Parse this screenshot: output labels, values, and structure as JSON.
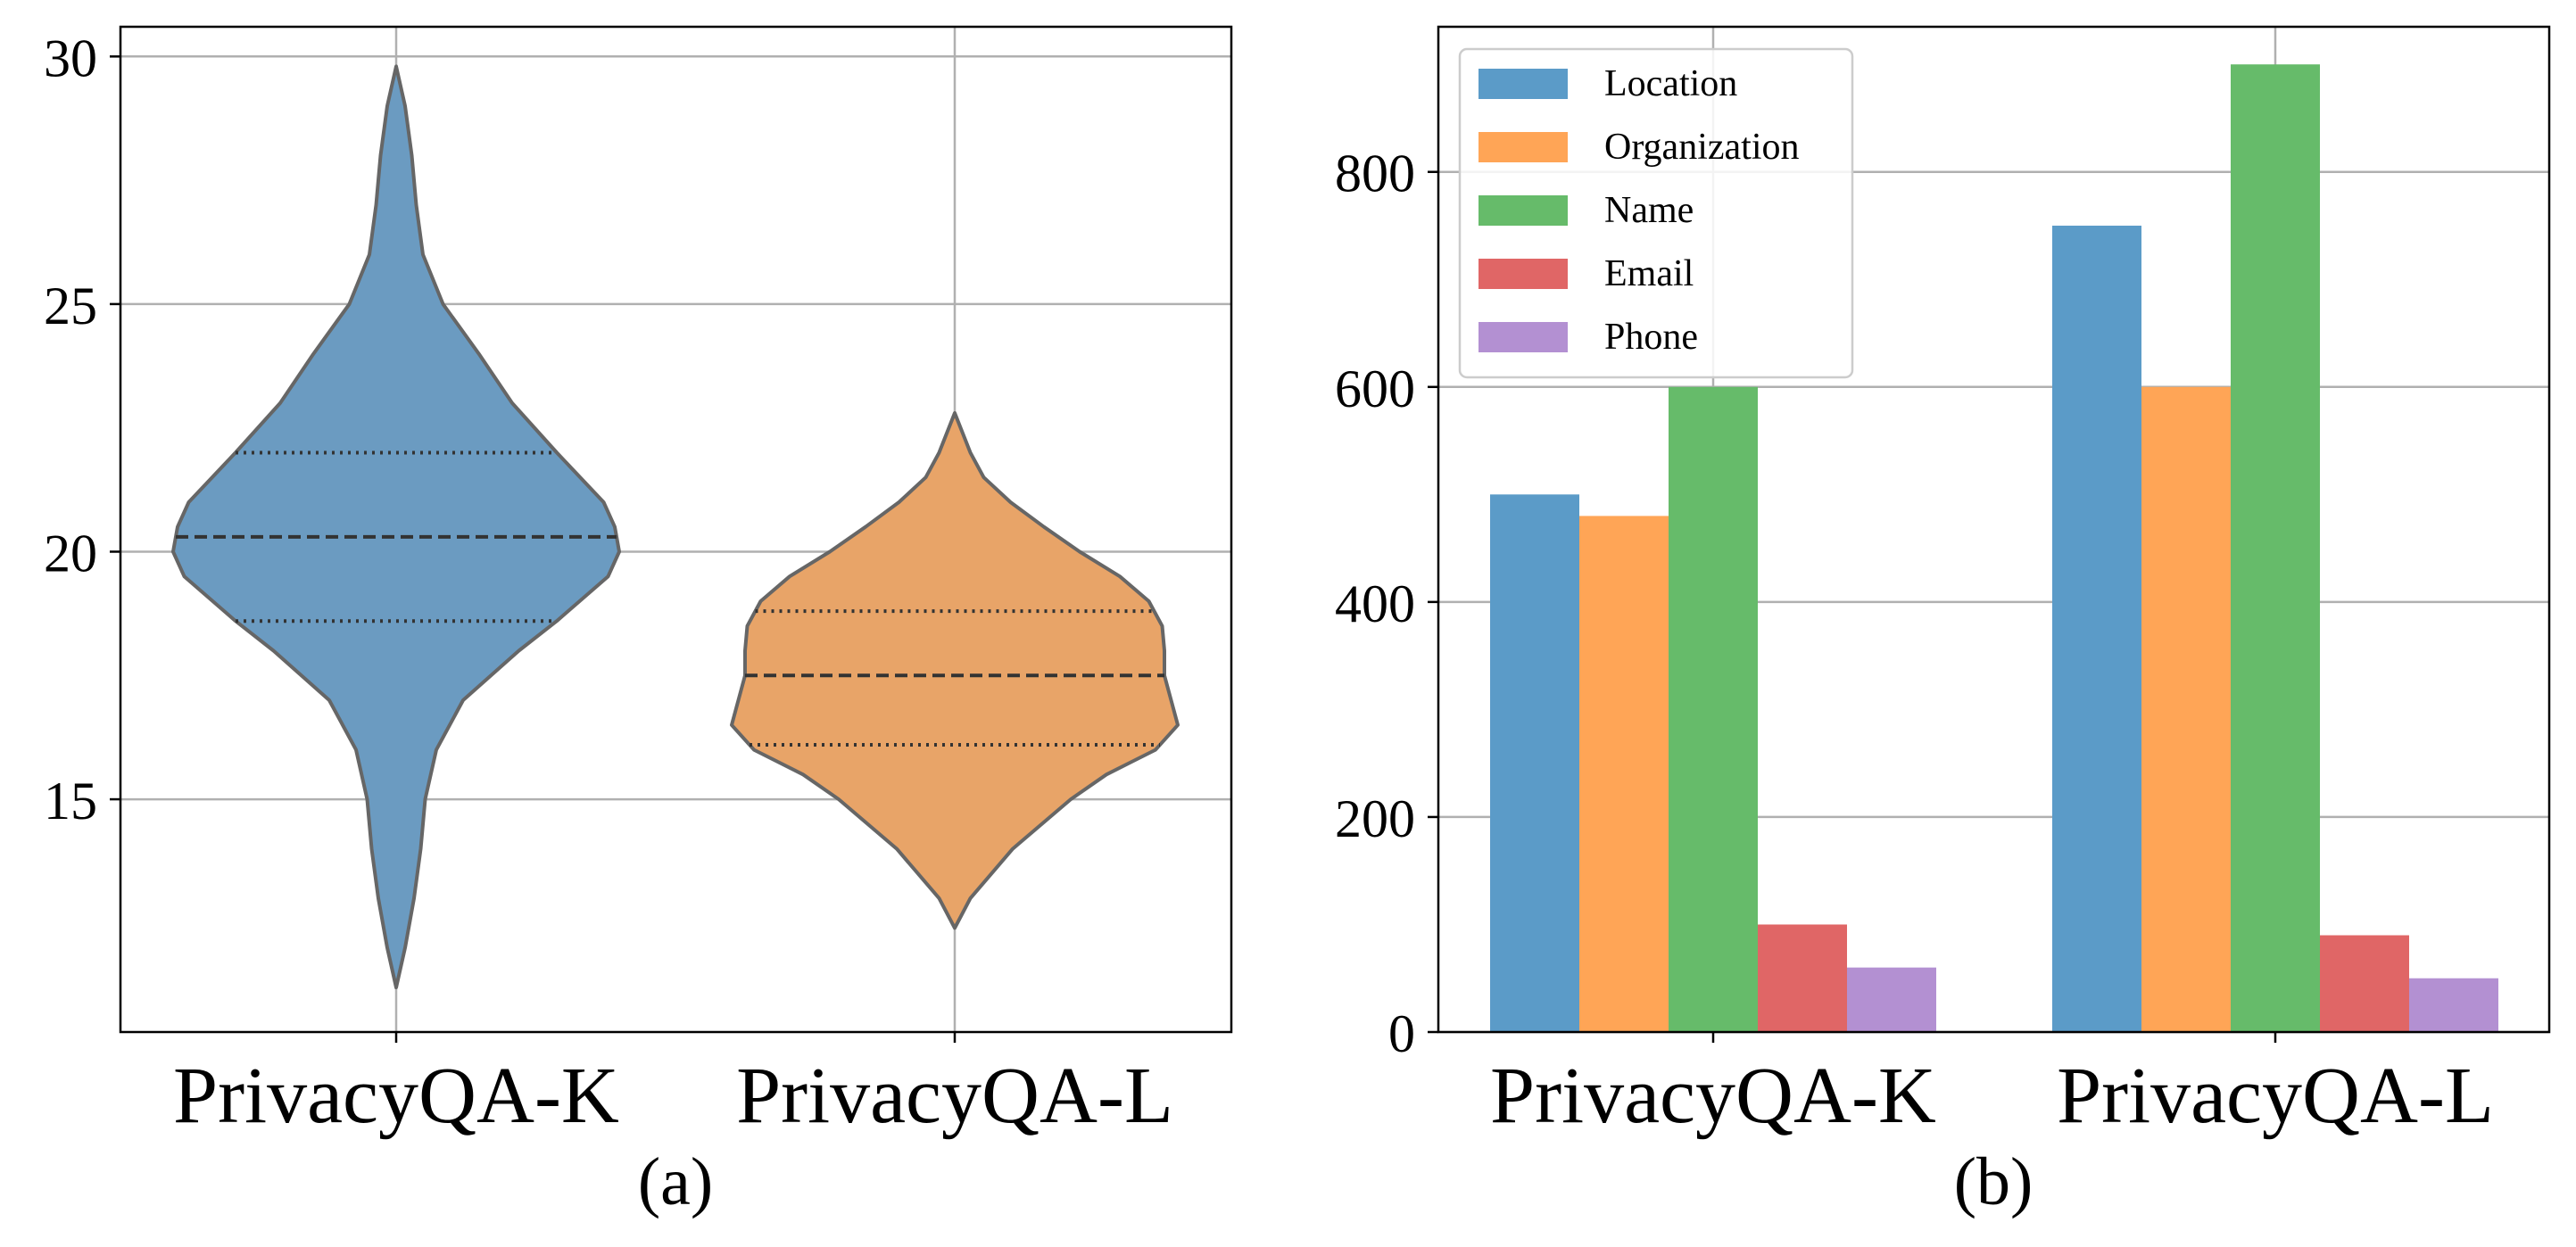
{
  "chart_data": [
    {
      "type": "violin",
      "caption": "(a)",
      "categories": [
        "PrivacyQA-K",
        "PrivacyQA-L"
      ],
      "ylim": [
        10.3,
        30.6
      ],
      "yticks": [
        15,
        20,
        25,
        30
      ],
      "grid": true,
      "colors": [
        "#6b9bc1",
        "#e8a468"
      ],
      "violins": [
        {
          "category": "PrivacyQA-K",
          "min": 11.2,
          "max": 29.8,
          "q1": 18.6,
          "median": 20.3,
          "q3": 22.0,
          "profile": [
            [
              11.2,
              0
            ],
            [
              12.0,
              0.04
            ],
            [
              13.0,
              0.08
            ],
            [
              14.0,
              0.11
            ],
            [
              15.0,
              0.13
            ],
            [
              16.0,
              0.18
            ],
            [
              17.0,
              0.3
            ],
            [
              18.0,
              0.55
            ],
            [
              18.6,
              0.72
            ],
            [
              19.5,
              0.95
            ],
            [
              20.0,
              1.0
            ],
            [
              20.5,
              0.98
            ],
            [
              21.0,
              0.93
            ],
            [
              22.0,
              0.72
            ],
            [
              23.0,
              0.52
            ],
            [
              24.0,
              0.37
            ],
            [
              25.0,
              0.21
            ],
            [
              26.0,
              0.12
            ],
            [
              27.0,
              0.09
            ],
            [
              28.0,
              0.07
            ],
            [
              29.0,
              0.04
            ],
            [
              29.8,
              0
            ]
          ]
        },
        {
          "category": "PrivacyQA-L",
          "min": 12.4,
          "max": 22.8,
          "q1": 16.1,
          "median": 17.5,
          "q3": 18.8,
          "profile": [
            [
              12.4,
              0
            ],
            [
              13.0,
              0.07
            ],
            [
              14.0,
              0.26
            ],
            [
              15.0,
              0.52
            ],
            [
              15.5,
              0.68
            ],
            [
              16.0,
              0.9
            ],
            [
              16.5,
              1.0
            ],
            [
              17.0,
              0.97
            ],
            [
              17.5,
              0.94
            ],
            [
              18.0,
              0.94
            ],
            [
              18.5,
              0.93
            ],
            [
              19.0,
              0.87
            ],
            [
              19.5,
              0.74
            ],
            [
              20.0,
              0.56
            ],
            [
              20.5,
              0.4
            ],
            [
              21.0,
              0.25
            ],
            [
              21.5,
              0.13
            ],
            [
              22.0,
              0.07
            ],
            [
              22.8,
              0
            ]
          ]
        }
      ]
    },
    {
      "type": "bar",
      "caption": "(b)",
      "categories": [
        "PrivacyQA-K",
        "PrivacyQA-L"
      ],
      "ylim": [
        0,
        935
      ],
      "yticks": [
        0,
        200,
        400,
        600,
        800
      ],
      "grid": true,
      "legend_position": "top-left",
      "series": [
        {
          "name": "Location",
          "color": "#5b9bc8",
          "values": [
            500,
            750
          ]
        },
        {
          "name": "Organization",
          "color": "#ffa556",
          "values": [
            480,
            600
          ]
        },
        {
          "name": "Name",
          "color": "#66bb6a",
          "values": [
            600,
            900
          ]
        },
        {
          "name": "Email",
          "color": "#e06666",
          "values": [
            100,
            90
          ]
        },
        {
          "name": "Phone",
          "color": "#b390d2",
          "values": [
            60,
            50
          ]
        }
      ]
    }
  ]
}
